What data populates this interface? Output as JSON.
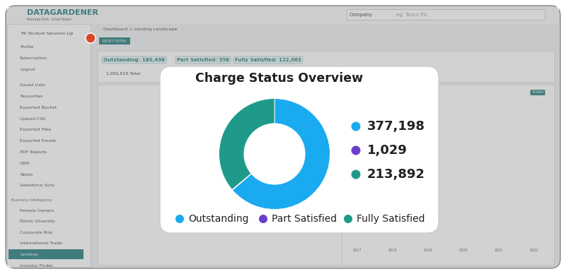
{
  "chart_data": {
    "type": "pie",
    "title": "Charge Status Overview",
    "categories": [
      "Outstanding",
      "Part Satisfied",
      "Fully Satisfied"
    ],
    "values": [
      377198,
      1029,
      213892
    ],
    "value_labels": [
      "377,198",
      "1,029",
      "213,892"
    ],
    "colors": [
      "#1aaaf0",
      "#6a3ec9",
      "#1f9a8a"
    ],
    "data_labels": true,
    "legend": "bottom"
  },
  "page": {
    "logo": "DATAGARDENER",
    "tagline": "Manage Risk. Grow Faster.",
    "search": {
      "scope": "Company",
      "placeholder": "eg. Tesco Plc"
    },
    "breadcrumb": "Dashboard > Lending Landscape",
    "account": "Mi Tecdure Services Llp",
    "menu": [
      "Profile",
      "Subscription",
      "Logout",
      "Saved Lists",
      "Favourites",
      "Exported Bucket",
      "Upload CSV",
      "Exported Files",
      "Exported Emails",
      "PDF Reports",
      "CRM",
      "Notes",
      "Salesforce Sync"
    ],
    "section": "Business Intelligence",
    "bi_menu": [
      "Female Owners",
      "Ethnic Diversity",
      "Corporate Risk",
      "International Trade",
      "Lending",
      "Investor Finder"
    ],
    "active": "Lending",
    "filter": "RESET FILTER",
    "chips": [
      "Outstanding: 180,498",
      "Part Satisfied: 558",
      "Fully Satisfied: 122,063"
    ],
    "total": "1,092,610 Total",
    "period": "YEARLY",
    "years": [
      "2017",
      "2018",
      "2019",
      "2020",
      "2021",
      "2022"
    ]
  }
}
